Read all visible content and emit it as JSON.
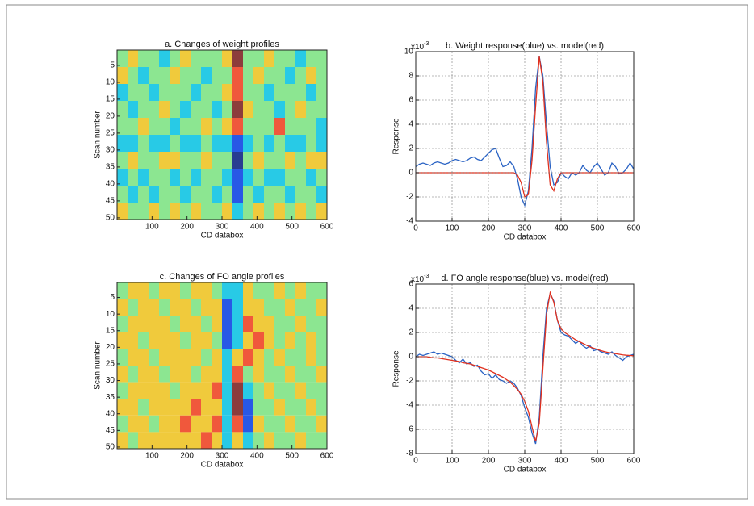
{
  "chart_data": [
    {
      "type": "heatmap",
      "title": "a. Changes of weight profiles",
      "x_label": "CD databox",
      "y_label": "Scan number",
      "colormap": "jet",
      "clim": [
        -3,
        3
      ],
      "y_reversed": true,
      "xlim": [
        0,
        600
      ],
      "xticks": [
        100,
        200,
        300,
        400,
        500,
        600
      ],
      "ylim": [
        0.5,
        50.5
      ],
      "yticks": [
        5,
        10,
        15,
        20,
        25,
        30,
        35,
        40,
        45,
        50
      ],
      "x": [
        15,
        45,
        75,
        105,
        135,
        165,
        195,
        225,
        255,
        285,
        315,
        345,
        375,
        405,
        435,
        465,
        495,
        525,
        555,
        585
      ],
      "y": [
        3,
        8,
        13,
        18,
        23,
        28,
        33,
        38,
        43,
        48
      ],
      "values": [
        [
          0,
          1,
          0,
          0,
          -1,
          0,
          1,
          0,
          0,
          0,
          1,
          3,
          0,
          0,
          1,
          0,
          0,
          -1,
          0,
          0
        ],
        [
          1,
          0,
          -1,
          0,
          0,
          1,
          0,
          0,
          -1,
          0,
          0,
          2,
          0,
          1,
          0,
          0,
          -1,
          0,
          1,
          0
        ],
        [
          -1,
          0,
          0,
          -1,
          0,
          0,
          0,
          -1,
          0,
          0,
          1,
          2,
          0,
          0,
          -1,
          0,
          0,
          0,
          -1,
          0
        ],
        [
          0,
          -1,
          0,
          0,
          1,
          0,
          -1,
          0,
          0,
          -1,
          0,
          3,
          1,
          0,
          0,
          -1,
          0,
          1,
          0,
          0
        ],
        [
          0,
          0,
          1,
          0,
          0,
          -1,
          0,
          0,
          1,
          0,
          1,
          2,
          0,
          0,
          0,
          2,
          0,
          0,
          0,
          -1
        ],
        [
          -1,
          -1,
          0,
          -1,
          -1,
          0,
          -1,
          -1,
          0,
          -1,
          -1,
          -2,
          -1,
          0,
          -1,
          0,
          -1,
          -1,
          0,
          -1
        ],
        [
          0,
          1,
          0,
          0,
          1,
          1,
          0,
          0,
          1,
          0,
          0,
          -3,
          0,
          1,
          0,
          0,
          1,
          0,
          1,
          1
        ],
        [
          -1,
          0,
          -1,
          0,
          0,
          -1,
          0,
          -1,
          0,
          0,
          -1,
          -2,
          -1,
          0,
          -1,
          -1,
          0,
          0,
          -1,
          0
        ],
        [
          0,
          -1,
          0,
          -1,
          0,
          0,
          -1,
          0,
          0,
          -1,
          0,
          -2,
          0,
          -1,
          0,
          0,
          -1,
          0,
          0,
          -1
        ],
        [
          1,
          0,
          0,
          1,
          0,
          1,
          0,
          1,
          0,
          0,
          1,
          -1,
          0,
          1,
          0,
          1,
          0,
          1,
          0,
          1
        ]
      ]
    },
    {
      "type": "line",
      "title": "b. Weight response(blue) vs. model(red)",
      "x_label": "CD databox",
      "y_label": "Response",
      "y_exponent_base": "x10",
      "y_exponent": "-3",
      "grid": true,
      "xlim": [
        0,
        600
      ],
      "xticks": [
        0,
        100,
        200,
        300,
        400,
        500,
        600
      ],
      "ylim": [
        -4,
        10
      ],
      "yticks": [
        -4,
        -2,
        0,
        2,
        4,
        6,
        8,
        10
      ],
      "x": [
        0,
        10,
        20,
        30,
        40,
        50,
        60,
        70,
        80,
        90,
        100,
        110,
        120,
        130,
        140,
        150,
        160,
        170,
        180,
        190,
        200,
        210,
        220,
        230,
        240,
        250,
        260,
        270,
        280,
        290,
        300,
        310,
        320,
        330,
        340,
        350,
        360,
        370,
        380,
        390,
        400,
        410,
        420,
        430,
        440,
        450,
        460,
        470,
        480,
        490,
        500,
        510,
        520,
        530,
        540,
        550,
        560,
        570,
        580,
        590,
        600
      ],
      "series": [
        {
          "color": "#2a63c4",
          "values": [
            0.5,
            0.7,
            0.8,
            0.7,
            0.6,
            0.8,
            0.9,
            0.8,
            0.7,
            0.8,
            1.0,
            1.1,
            1.0,
            0.9,
            1.0,
            1.2,
            1.3,
            1.1,
            1.0,
            1.3,
            1.6,
            1.9,
            2.0,
            1.2,
            0.5,
            0.6,
            0.9,
            0.5,
            -0.5,
            -2.0,
            -2.7,
            -1.5,
            2.0,
            7.0,
            9.6,
            8.0,
            4.0,
            0.5,
            -1.0,
            -0.8,
            0.0,
            -0.3,
            -0.5,
            0.0,
            -0.2,
            0.0,
            0.6,
            0.2,
            0.0,
            0.5,
            0.8,
            0.3,
            -0.2,
            0.0,
            0.8,
            0.5,
            -0.1,
            0.0,
            0.3,
            0.8,
            0.3
          ]
        },
        {
          "color": "#e0301e",
          "values": [
            0,
            0,
            0,
            0,
            0,
            0,
            0,
            0,
            0,
            0,
            0,
            0,
            0,
            0,
            0,
            0,
            0,
            0,
            0,
            0,
            0,
            0,
            0,
            0,
            0,
            0,
            0,
            0,
            -0.2,
            -0.8,
            -2.0,
            -1.8,
            1.0,
            5.5,
            9.6,
            7.5,
            2.5,
            -1.0,
            -1.5,
            -0.5,
            0,
            0,
            0,
            0,
            0,
            0,
            0,
            0,
            0,
            0,
            0,
            0,
            0,
            0,
            0,
            0,
            0,
            0,
            0,
            0,
            0
          ]
        }
      ]
    },
    {
      "type": "heatmap",
      "title": "c. Changes of FO angle profiles",
      "x_label": "CD databox",
      "y_label": "Scan number",
      "colormap": "jet",
      "clim": [
        -3,
        3
      ],
      "y_reversed": true,
      "xlim": [
        0,
        600
      ],
      "xticks": [
        100,
        200,
        300,
        400,
        500,
        600
      ],
      "ylim": [
        0.5,
        50.5
      ],
      "yticks": [
        5,
        10,
        15,
        20,
        25,
        30,
        35,
        40,
        45,
        50
      ],
      "x": [
        15,
        45,
        75,
        105,
        135,
        165,
        195,
        225,
        255,
        285,
        315,
        345,
        375,
        405,
        435,
        465,
        495,
        525,
        555,
        585
      ],
      "y": [
        3,
        8,
        13,
        18,
        23,
        28,
        33,
        38,
        43,
        48
      ],
      "values": [
        [
          0,
          1,
          1,
          0,
          1,
          1,
          0,
          1,
          1,
          0,
          -1,
          -1,
          1,
          0,
          0,
          1,
          0,
          1,
          0,
          0
        ],
        [
          1,
          0,
          1,
          1,
          0,
          1,
          1,
          0,
          1,
          1,
          -2,
          -1,
          1,
          1,
          0,
          0,
          1,
          0,
          0,
          1
        ],
        [
          0,
          1,
          1,
          1,
          1,
          0,
          1,
          1,
          0,
          1,
          -2,
          -1,
          2,
          1,
          1,
          0,
          0,
          1,
          0,
          0
        ],
        [
          1,
          1,
          0,
          1,
          1,
          1,
          0,
          1,
          1,
          0,
          -2,
          -1,
          1,
          2,
          1,
          0,
          1,
          0,
          1,
          0
        ],
        [
          0,
          1,
          1,
          0,
          1,
          1,
          1,
          1,
          0,
          1,
          -1,
          1,
          2,
          1,
          0,
          1,
          0,
          0,
          1,
          0
        ],
        [
          1,
          0,
          1,
          1,
          0,
          1,
          1,
          0,
          1,
          1,
          -1,
          2,
          0,
          1,
          0,
          0,
          1,
          0,
          0,
          1
        ],
        [
          0,
          1,
          1,
          1,
          1,
          0,
          1,
          1,
          1,
          2,
          -1,
          3,
          -1,
          0,
          1,
          0,
          0,
          1,
          0,
          0
        ],
        [
          1,
          1,
          0,
          1,
          1,
          1,
          1,
          2,
          1,
          1,
          -1,
          3,
          -2,
          0,
          0,
          1,
          0,
          0,
          1,
          0
        ],
        [
          0,
          1,
          1,
          0,
          1,
          1,
          2,
          1,
          1,
          2,
          -1,
          2,
          -2,
          1,
          0,
          0,
          1,
          0,
          0,
          1
        ],
        [
          1,
          0,
          1,
          1,
          1,
          1,
          1,
          1,
          2,
          1,
          -1,
          1,
          -1,
          0,
          1,
          0,
          0,
          1,
          0,
          0
        ]
      ]
    },
    {
      "type": "line",
      "title": "d. FO angle response(blue) vs. model(red)",
      "x_label": "CD databox",
      "y_label": "Response",
      "y_exponent_base": "x10",
      "y_exponent": "-3",
      "grid": true,
      "xlim": [
        0,
        600
      ],
      "xticks": [
        0,
        100,
        200,
        300,
        400,
        500,
        600
      ],
      "ylim": [
        -8,
        6
      ],
      "yticks": [
        -8,
        -6,
        -4,
        -2,
        0,
        2,
        4,
        6
      ],
      "x": [
        0,
        10,
        20,
        30,
        40,
        50,
        60,
        70,
        80,
        90,
        100,
        110,
        120,
        130,
        140,
        150,
        160,
        170,
        180,
        190,
        200,
        210,
        220,
        230,
        240,
        250,
        260,
        270,
        280,
        290,
        300,
        310,
        320,
        330,
        340,
        350,
        360,
        370,
        380,
        390,
        400,
        410,
        420,
        430,
        440,
        450,
        460,
        470,
        480,
        490,
        500,
        510,
        520,
        530,
        540,
        550,
        560,
        570,
        580,
        590,
        600
      ],
      "series": [
        {
          "color": "#2a63c4",
          "values": [
            0,
            0.2,
            0.1,
            0.2,
            0.3,
            0.4,
            0.2,
            0.3,
            0.2,
            0.1,
            0.0,
            -0.3,
            -0.5,
            -0.2,
            -0.6,
            -0.5,
            -0.8,
            -0.7,
            -1.2,
            -1.5,
            -1.4,
            -1.8,
            -1.5,
            -1.9,
            -2.0,
            -2.2,
            -2.0,
            -2.2,
            -2.6,
            -3.2,
            -4.2,
            -5.0,
            -6.3,
            -7.2,
            -5.0,
            0.0,
            4.0,
            5.2,
            4.6,
            3.0,
            2.0,
            1.8,
            1.7,
            1.4,
            1.1,
            1.3,
            0.9,
            0.7,
            0.9,
            0.5,
            0.6,
            0.4,
            0.3,
            0.2,
            0.4,
            0.1,
            -0.1,
            -0.3,
            0.0,
            0.1,
            0.2
          ]
        },
        {
          "color": "#e0301e",
          "values": [
            0,
            0,
            0,
            0,
            -0.05,
            -0.1,
            -0.1,
            -0.15,
            -0.2,
            -0.25,
            -0.3,
            -0.35,
            -0.4,
            -0.5,
            -0.55,
            -0.6,
            -0.7,
            -0.8,
            -0.9,
            -1.0,
            -1.1,
            -1.25,
            -1.4,
            -1.55,
            -1.7,
            -1.9,
            -2.1,
            -2.4,
            -2.7,
            -3.1,
            -3.7,
            -4.5,
            -5.8,
            -7.0,
            -5.5,
            -1.0,
            3.5,
            5.3,
            4.5,
            3.0,
            2.3,
            2.0,
            1.8,
            1.6,
            1.4,
            1.25,
            1.1,
            0.95,
            0.8,
            0.7,
            0.6,
            0.5,
            0.42,
            0.35,
            0.3,
            0.25,
            0.2,
            0.15,
            0.12,
            0.1,
            0.08
          ]
        }
      ]
    }
  ]
}
